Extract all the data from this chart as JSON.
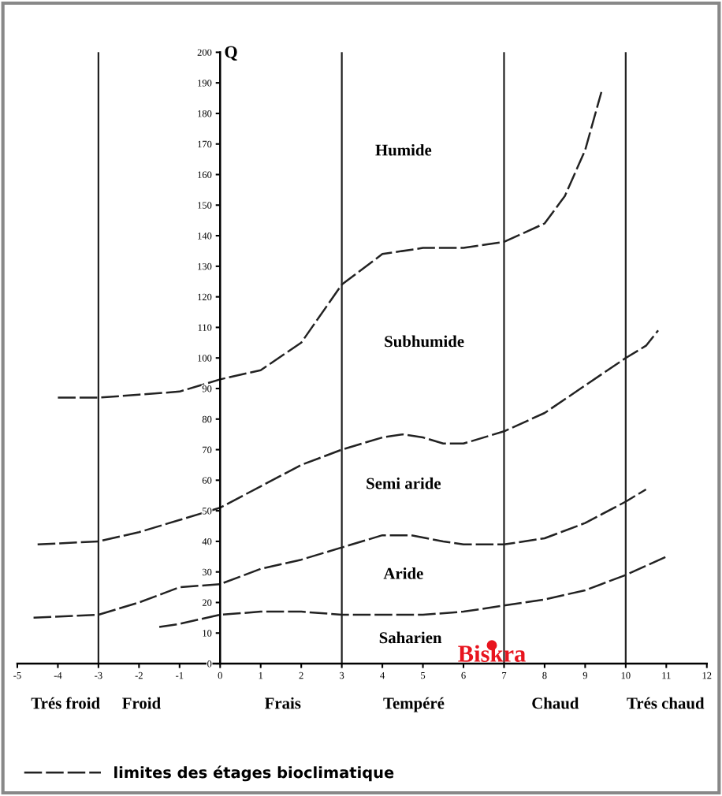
{
  "chart_data": {
    "type": "line",
    "ylabel": "Q",
    "xlim": [
      -5,
      12
    ],
    "xticks": [
      -5,
      -4,
      -3,
      -2,
      -1,
      0,
      1,
      2,
      3,
      4,
      5,
      6,
      7,
      8,
      9,
      10,
      11,
      12
    ],
    "ylim": [
      0,
      200
    ],
    "yticks": [
      0,
      10,
      20,
      30,
      40,
      50,
      60,
      70,
      80,
      90,
      100,
      110,
      120,
      130,
      140,
      150,
      160,
      170,
      180,
      190,
      200
    ],
    "grid": false,
    "legend": "bottom left",
    "line_style": "dashed",
    "marker": "none",
    "series": [
      {
        "name": "limites des étages bioclimatique",
        "color": "#222222",
        "x": [
          -4.0,
          -3,
          -2,
          -1,
          0,
          1,
          2,
          3,
          4,
          5,
          6,
          7,
          8,
          8.5,
          9,
          9.4
        ],
        "values": [
          87,
          87,
          88,
          89,
          93,
          96,
          105,
          124,
          134,
          136,
          136,
          138,
          144,
          153,
          168,
          187
        ]
      },
      {
        "color": "#222222",
        "x": [
          -4.5,
          -3,
          -2,
          -1,
          0,
          1,
          2,
          3,
          4,
          4.5,
          5,
          5.5,
          6,
          7,
          8,
          9,
          10,
          10.5,
          10.8
        ],
        "values": [
          39,
          40,
          43,
          47,
          51,
          58,
          65,
          70,
          74,
          75,
          74,
          72,
          72,
          76,
          82,
          91,
          100,
          104,
          109
        ]
      },
      {
        "color": "#222222",
        "x": [
          -4.6,
          -3,
          -2,
          -1,
          0,
          1,
          2,
          3,
          4,
          4.7,
          5.5,
          6,
          7,
          8,
          9,
          10,
          10.5
        ],
        "values": [
          15,
          16,
          20,
          25,
          26,
          31,
          34,
          38,
          42,
          42,
          40,
          39,
          39,
          41,
          46,
          53,
          57
        ]
      },
      {
        "color": "#222222",
        "x": [
          -1.5,
          -1,
          0,
          1,
          2,
          3,
          4,
          5,
          6,
          7,
          8,
          9,
          10,
          11
        ],
        "values": [
          12,
          13,
          16,
          17,
          17,
          16,
          16,
          16,
          17,
          19,
          21,
          24,
          29,
          35
        ]
      },
      {
        "name": "Biskra",
        "type": "scatter",
        "marker": "circle",
        "color": "#e8141e",
        "x": [
          6.7
        ],
        "values": [
          6
        ]
      }
    ],
    "ref_lines": [
      {
        "axis": "x",
        "value": -3,
        "color": "#222222"
      },
      {
        "axis": "x",
        "value": 3,
        "color": "#222222"
      },
      {
        "axis": "x",
        "value": 7,
        "color": "#222222"
      },
      {
        "axis": "x",
        "value": 10,
        "color": "#222222"
      }
    ],
    "annotations": [
      "Humide",
      "Subhumide",
      "Semi aride",
      "Aride",
      "Saharien",
      "Trés froid",
      "Froid",
      "Frais",
      "Tempéré",
      "Chaud",
      "Trés chaud"
    ]
  }
}
